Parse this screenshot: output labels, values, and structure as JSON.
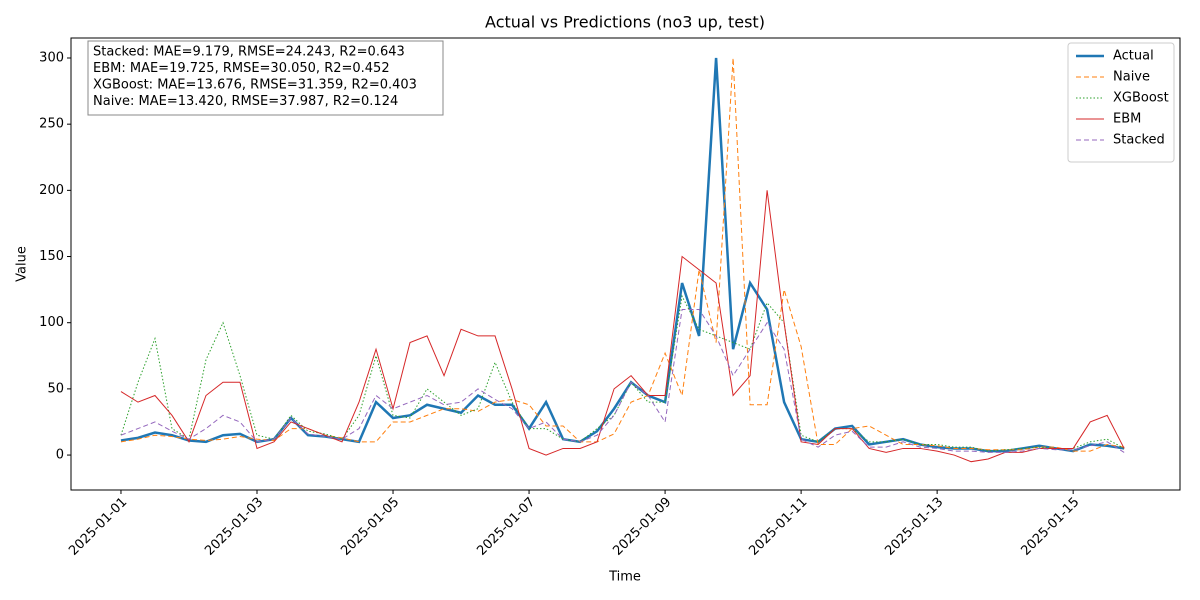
{
  "chart_data": {
    "type": "line",
    "title": "Actual vs Predictions (no3 up, test)",
    "xlabel": "Time",
    "ylabel": "Value",
    "annotations": [
      "Stacked: MAE=9.179, RMSE=24.243, R2=0.643",
      "EBM: MAE=19.725, RMSE=30.050, R2=0.452",
      "XGBoost: MAE=13.676, RMSE=31.359, R2=0.403",
      "Naive: MAE=13.420, RMSE=37.987, R2=0.124"
    ],
    "legend": "upper right",
    "grid": false,
    "xlim": [
      "2024-12-31T06:22",
      "2025-01-16T13:42"
    ],
    "xticks": [
      "2025-01-01",
      "2025-01-03",
      "2025-01-05",
      "2025-01-07",
      "2025-01-09",
      "2025-01-11",
      "2025-01-13",
      "2025-01-15"
    ],
    "ylim": [
      -26.4,
      315.1
    ],
    "yticks": [
      0,
      50,
      100,
      150,
      200,
      250,
      300
    ],
    "x": [
      "2025-01-01T00:00",
      "2025-01-01T06:00",
      "2025-01-01T12:00",
      "2025-01-01T18:00",
      "2025-01-02T00:00",
      "2025-01-02T06:00",
      "2025-01-02T12:00",
      "2025-01-02T18:00",
      "2025-01-03T00:00",
      "2025-01-03T06:00",
      "2025-01-03T12:00",
      "2025-01-03T18:00",
      "2025-01-04T00:00",
      "2025-01-04T06:00",
      "2025-01-04T12:00",
      "2025-01-04T18:00",
      "2025-01-05T00:00",
      "2025-01-05T06:00",
      "2025-01-05T12:00",
      "2025-01-05T18:00",
      "2025-01-06T00:00",
      "2025-01-06T06:00",
      "2025-01-06T12:00",
      "2025-01-06T18:00",
      "2025-01-07T00:00",
      "2025-01-07T06:00",
      "2025-01-07T12:00",
      "2025-01-07T18:00",
      "2025-01-08T00:00",
      "2025-01-08T06:00",
      "2025-01-08T12:00",
      "2025-01-08T18:00",
      "2025-01-09T00:00",
      "2025-01-09T06:00",
      "2025-01-09T12:00",
      "2025-01-09T18:00",
      "2025-01-10T00:00",
      "2025-01-10T06:00",
      "2025-01-10T12:00",
      "2025-01-10T18:00",
      "2025-01-11T00:00",
      "2025-01-11T06:00",
      "2025-01-11T12:00",
      "2025-01-11T18:00",
      "2025-01-12T00:00",
      "2025-01-12T06:00",
      "2025-01-12T12:00",
      "2025-01-12T18:00",
      "2025-01-13T00:00",
      "2025-01-13T06:00",
      "2025-01-13T12:00",
      "2025-01-13T18:00",
      "2025-01-14T00:00",
      "2025-01-14T06:00",
      "2025-01-14T12:00",
      "2025-01-14T18:00",
      "2025-01-15T00:00",
      "2025-01-15T06:00",
      "2025-01-15T12:00",
      "2025-01-15T18:00"
    ],
    "series": [
      {
        "name": "Actual",
        "color": "#1f77b4",
        "linestyle": "solid",
        "linewidth": 2.5,
        "values": [
          11,
          13,
          17,
          15,
          11,
          10,
          15,
          16,
          10,
          12,
          28,
          15,
          14,
          12,
          10,
          40,
          28,
          30,
          38,
          35,
          32,
          45,
          38,
          38,
          20,
          40,
          12,
          10,
          18,
          35,
          55,
          45,
          40,
          130,
          90,
          300,
          80,
          130,
          110,
          40,
          12,
          10,
          20,
          22,
          8,
          10,
          12,
          8,
          6,
          5,
          5,
          3,
          3,
          5,
          7,
          5,
          3,
          8,
          7,
          5
        ]
      },
      {
        "name": "Naive",
        "color": "#ff7f0e",
        "linestyle": "dashed",
        "linewidth": 1,
        "values": [
          10,
          12,
          15,
          14,
          12,
          11,
          12,
          14,
          12,
          11,
          20,
          20,
          15,
          13,
          10,
          10,
          25,
          25,
          30,
          35,
          35,
          33,
          40,
          42,
          38,
          22,
          22,
          10,
          10,
          16,
          40,
          45,
          77,
          45,
          140,
          85,
          300,
          38,
          38,
          125,
          82,
          8,
          8,
          20,
          22,
          15,
          8,
          8,
          7,
          5,
          5,
          4,
          4,
          4,
          6,
          6,
          3,
          3,
          8,
          6
        ]
      },
      {
        "name": "XGBoost",
        "color": "#2ca02c",
        "linestyle": "dotted",
        "linewidth": 1,
        "values": [
          15,
          55,
          88,
          20,
          12,
          72,
          100,
          60,
          15,
          12,
          30,
          18,
          16,
          12,
          30,
          75,
          30,
          28,
          50,
          40,
          30,
          35,
          70,
          40,
          20,
          20,
          12,
          10,
          20,
          30,
          55,
          40,
          40,
          120,
          95,
          90,
          85,
          80,
          115,
          100,
          15,
          10,
          20,
          20,
          10,
          10,
          12,
          8,
          8,
          6,
          6,
          3,
          4,
          5,
          6,
          5,
          5,
          10,
          12,
          5
        ]
      },
      {
        "name": "EBM",
        "color": "#d62728",
        "linestyle": "solid",
        "linewidth": 1,
        "values": [
          48,
          40,
          45,
          30,
          10,
          45,
          55,
          55,
          5,
          10,
          25,
          20,
          15,
          10,
          40,
          80,
          35,
          85,
          90,
          60,
          95,
          90,
          90,
          50,
          5,
          0,
          5,
          5,
          10,
          50,
          60,
          45,
          45,
          150,
          140,
          130,
          45,
          60,
          200,
          100,
          10,
          8,
          20,
          20,
          5,
          2,
          5,
          5,
          3,
          0,
          -5,
          -3,
          2,
          2,
          5,
          5,
          5,
          25,
          30,
          5
        ]
      },
      {
        "name": "Stacked",
        "color": "#9467bd",
        "linestyle": "dashed",
        "linewidth": 1,
        "values": [
          15,
          20,
          25,
          18,
          12,
          20,
          30,
          25,
          10,
          12,
          28,
          16,
          14,
          12,
          20,
          45,
          35,
          40,
          45,
          38,
          40,
          50,
          42,
          35,
          20,
          25,
          12,
          10,
          15,
          30,
          55,
          45,
          25,
          110,
          110,
          90,
          60,
          80,
          100,
          80,
          12,
          6,
          15,
          18,
          6,
          6,
          10,
          6,
          5,
          3,
          3,
          2,
          2,
          3,
          5,
          4,
          4,
          7,
          10,
          2
        ]
      }
    ]
  }
}
